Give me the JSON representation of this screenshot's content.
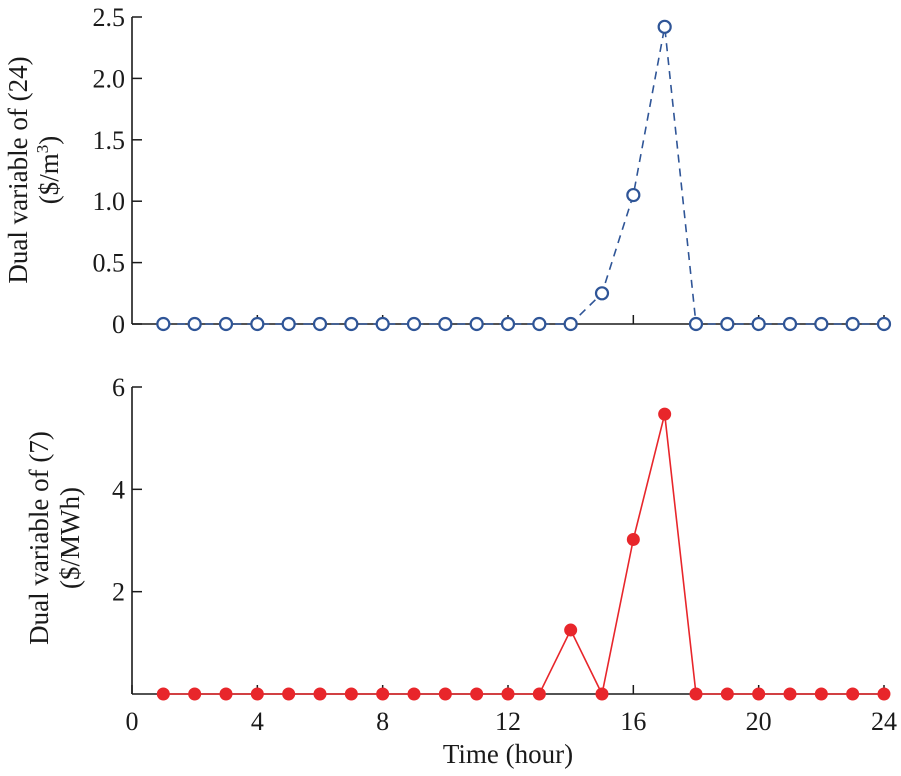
{
  "chart_data": [
    {
      "type": "line",
      "ylabel_line1": "Dual variable of (24)",
      "ylabel_line2": "($/m",
      "ylabel_sup": "3",
      "ylabel_close": ")",
      "x": [
        1,
        2,
        3,
        4,
        5,
        6,
        7,
        8,
        9,
        10,
        11,
        12,
        13,
        14,
        15,
        16,
        17,
        18,
        19,
        20,
        21,
        22,
        23,
        24
      ],
      "series": [
        {
          "values": [
            0,
            0,
            0,
            0,
            0,
            0,
            0,
            0,
            0,
            0,
            0,
            0,
            0,
            0,
            0.25,
            1.05,
            2.42,
            0,
            0,
            0,
            0,
            0,
            0,
            0
          ],
          "color": "#2f5597",
          "line_style": "dashed",
          "marker": "open-circle"
        }
      ],
      "xlim": [
        0,
        24
      ],
      "ylim": [
        0,
        2.5
      ],
      "yticks": [
        "0",
        "0.5",
        "1.0",
        "1.5",
        "2.0",
        "2.5"
      ],
      "xticks": [
        4,
        8,
        12,
        16,
        20,
        24
      ]
    },
    {
      "type": "line",
      "ylabel_line1": "Dual variable of (7)",
      "ylabel_line2": "($/MWh)",
      "xlabel": "Time (hour)",
      "x": [
        1,
        2,
        3,
        4,
        5,
        6,
        7,
        8,
        9,
        10,
        11,
        12,
        13,
        14,
        15,
        16,
        17,
        18,
        19,
        20,
        21,
        22,
        23,
        24
      ],
      "series": [
        {
          "values": [
            0,
            0,
            0,
            0,
            0,
            0,
            0,
            0,
            0,
            0,
            0,
            0,
            0,
            1.25,
            0,
            3.02,
            5.47,
            0,
            0,
            0,
            0,
            0,
            0,
            0
          ],
          "color": "#e8262b",
          "line_style": "solid",
          "marker": "filled-circle"
        }
      ],
      "xlim": [
        0,
        24
      ],
      "ylim": [
        0,
        6
      ],
      "yticks": [
        "2",
        "4",
        "6"
      ],
      "xticks": [
        "0",
        "4",
        "8",
        "12",
        "16",
        "20",
        "24"
      ]
    }
  ]
}
